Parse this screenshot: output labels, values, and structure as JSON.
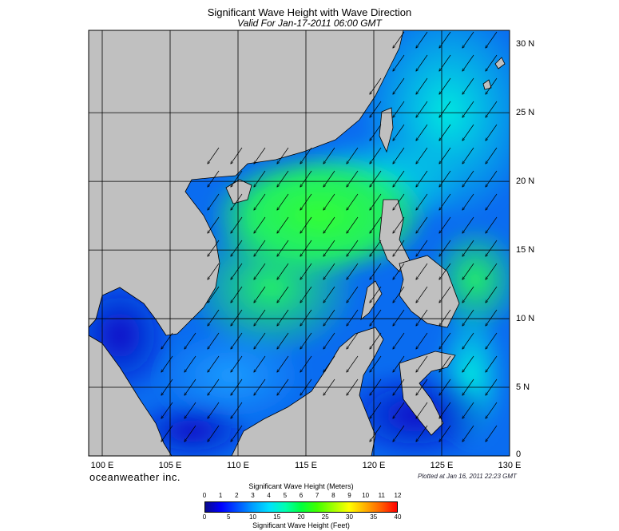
{
  "title": "Significant Wave Height with Wave Direction",
  "subtitle": "Valid For Jan-17-2011 06:00 GMT",
  "map": {
    "lon_range": [
      99,
      130
    ],
    "lat_range": [
      0,
      31
    ],
    "lat_labels": [
      "30 N",
      "25 N",
      "20 N",
      "15 N",
      "10 N",
      "5 N",
      "0"
    ],
    "lat_values": [
      30,
      25,
      20,
      15,
      10,
      5,
      0
    ],
    "lon_labels": [
      "100 E",
      "105 E",
      "110 E",
      "115 E",
      "120 E",
      "125 E",
      "130 E"
    ],
    "lon_values": [
      100,
      105,
      110,
      115,
      120,
      125,
      130
    ],
    "grid_lons": [
      100,
      105,
      110,
      115,
      120,
      125
    ],
    "grid_lats": [
      5,
      10,
      15,
      20,
      25
    ],
    "land_color": "#c0c0c0",
    "wave_direction_dominant": "northeast"
  },
  "brand": "oceanweather inc.",
  "plotted": "Plotted at Jan 16, 2011 22:23 GMT",
  "colorbar": {
    "title_meters": "Significant Wave Height (Meters)",
    "title_feet": "Significant Wave Height (Feet)",
    "meter_ticks": [
      "0",
      "1",
      "2",
      "3",
      "4",
      "5",
      "6",
      "7",
      "8",
      "9",
      "10",
      "11",
      "12"
    ],
    "feet_ticks": [
      "0",
      "5",
      "10",
      "15",
      "20",
      "25",
      "30",
      "35",
      "40"
    ],
    "colors": [
      "#0a0a8c",
      "#0000ff",
      "#0050ff",
      "#00a0ff",
      "#00e0ff",
      "#00ffb0",
      "#00ff40",
      "#40ff00",
      "#a0ff00",
      "#ffff00",
      "#ffb000",
      "#ff6000",
      "#ff0000"
    ]
  }
}
